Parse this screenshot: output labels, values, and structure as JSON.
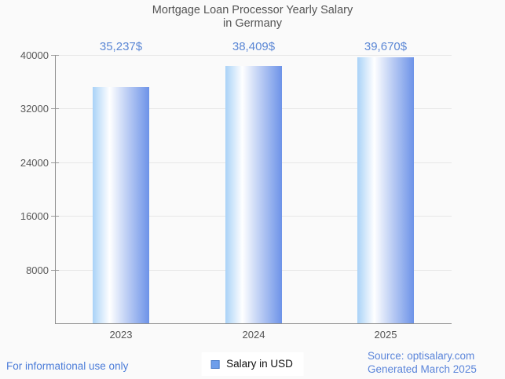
{
  "title": {
    "line1": "Mortgage Loan Processor Yearly Salary",
    "line2": "in Germany"
  },
  "chart_data": {
    "type": "bar",
    "title": "Mortgage Loan Processor Yearly Salary in Germany",
    "categories": [
      "2023",
      "2024",
      "2025"
    ],
    "values": [
      35237,
      38409,
      39670
    ],
    "value_labels": [
      "35,237$",
      "38,409$",
      "39,670$"
    ],
    "series": [
      {
        "name": "Salary in USD",
        "values": [
          35237,
          38409,
          39670
        ]
      }
    ],
    "xlabel": "",
    "ylabel": "",
    "ylim": [
      0,
      40000
    ],
    "yticks": [
      8000,
      16000,
      24000,
      32000,
      40000
    ],
    "grid": "horizontal",
    "legend_position": "bottom",
    "bar_gradient": [
      "#a9d2f7",
      "#ffffff",
      "#6d93e8"
    ],
    "value_label_color": "#5b87d5"
  },
  "legend": {
    "label": "Salary in USD",
    "marker_fill": "#6d9eeb",
    "marker_border": "#4a7dc9"
  },
  "footer": {
    "left": "For informational use only",
    "source": "Source: optisalary.com",
    "generated": "Generated March 2025"
  },
  "colors": {
    "background": "#fafafa",
    "title_text": "#545454",
    "axis_text": "#595959",
    "gridline": "#e7e7e7",
    "axis_line": "#8f8f8f",
    "footer_link": "#4b7cd9"
  }
}
